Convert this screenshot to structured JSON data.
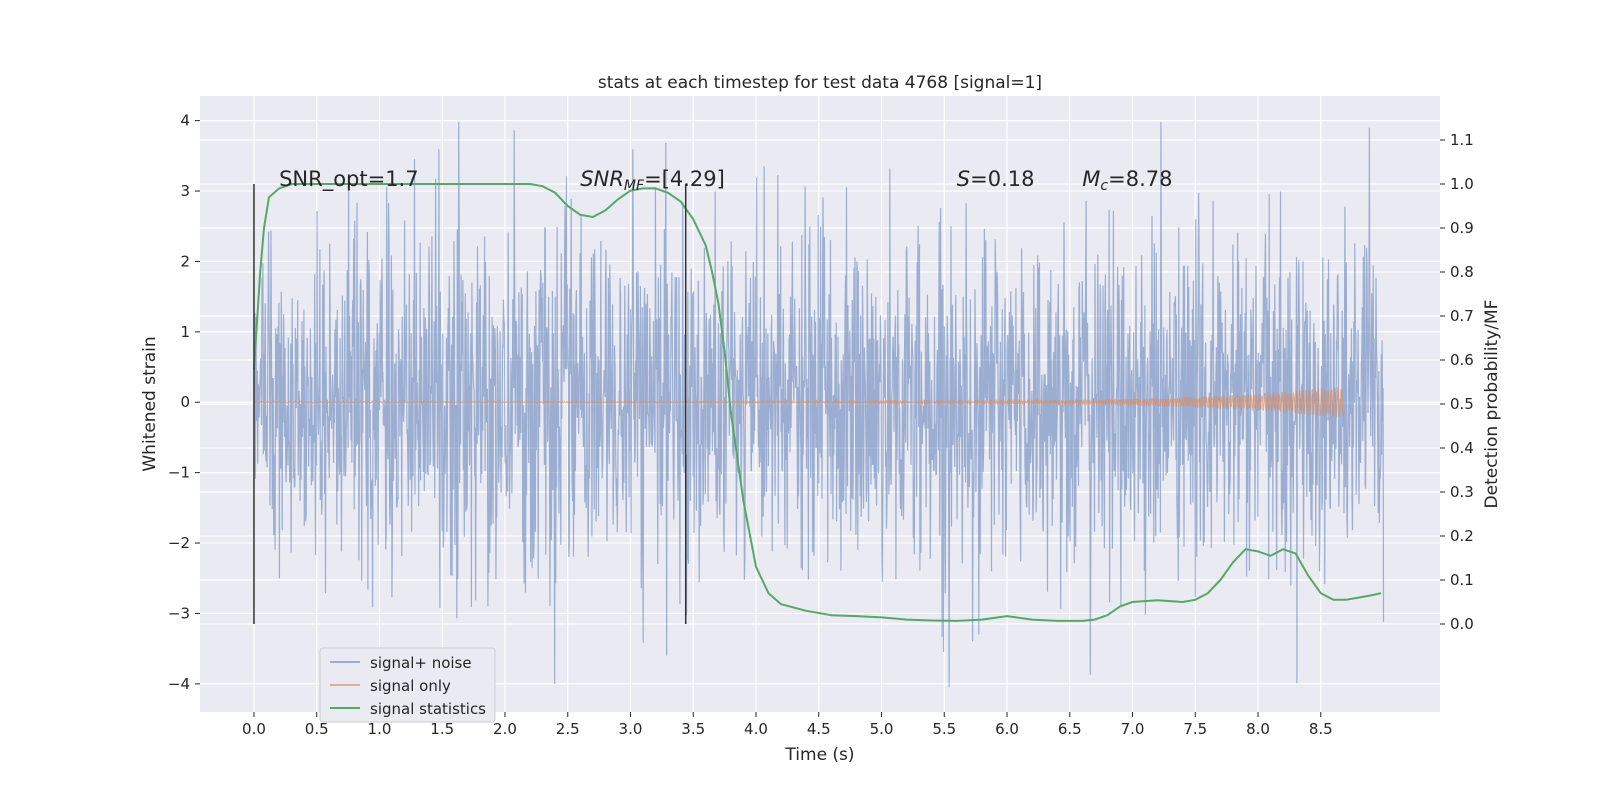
{
  "chart_data": {
    "type": "line",
    "title": "stats at each timestep for test data 4768 [signal=1]",
    "xlabel": "Time (s)",
    "ylabel": "Whitened strain",
    "y2label": "Detection probability/MF",
    "xlim": [
      -0.43,
      9.45
    ],
    "ylim": [
      -4.4,
      4.35
    ],
    "y2lim": [
      -0.2,
      1.2
    ],
    "x_ticks": [
      "0.0",
      "0.5",
      "1.0",
      "1.5",
      "2.0",
      "2.5",
      "3.0",
      "3.5",
      "4.0",
      "4.5",
      "5.0",
      "5.5",
      "6.0",
      "6.5",
      "7.0",
      "7.5",
      "8.0",
      "8.5"
    ],
    "x_tick_values": [
      0.0,
      0.5,
      1.0,
      1.5,
      2.0,
      2.5,
      3.0,
      3.5,
      4.0,
      4.5,
      5.0,
      5.5,
      6.0,
      6.5,
      7.0,
      7.5,
      8.0,
      8.5
    ],
    "y_ticks": [
      "−4",
      "−3",
      "−2",
      "−1",
      "0",
      "1",
      "2",
      "3",
      "4"
    ],
    "y_tick_values": [
      -4,
      -3,
      -2,
      -1,
      0,
      1,
      2,
      3,
      4
    ],
    "y2_ticks": [
      "0.0",
      "0.1",
      "0.2",
      "0.3",
      "0.4",
      "0.5",
      "0.6",
      "0.7",
      "0.8",
      "0.9",
      "1.0",
      "1.1"
    ],
    "y2_tick_values": [
      0.0,
      0.1,
      0.2,
      0.3,
      0.4,
      0.5,
      0.6,
      0.7,
      0.8,
      0.9,
      1.0,
      1.1
    ],
    "grid": true,
    "legend_position": "bottom-left",
    "series": [
      {
        "name": "signal+ noise",
        "axis": "left",
        "kind": "noise",
        "color": "#4c72b0",
        "x_range": [
          0.0,
          9.0
        ],
        "typical_amplitude": 1.2,
        "max": 3.98,
        "min": -4.05
      },
      {
        "name": "signal only",
        "axis": "left",
        "kind": "chirp",
        "color": "#dd8452",
        "x_range": [
          0.0,
          8.68
        ],
        "max_amplitude": 0.22
      },
      {
        "name": "signal statistics",
        "axis": "right",
        "color": "#55a868",
        "x": [
          0.0,
          0.05,
          0.08,
          0.12,
          0.2,
          0.3,
          0.5,
          1.0,
          1.5,
          2.0,
          2.2,
          2.3,
          2.4,
          2.5,
          2.6,
          2.7,
          2.8,
          2.9,
          3.0,
          3.1,
          3.2,
          3.3,
          3.4,
          3.5,
          3.6,
          3.65,
          3.7,
          3.75,
          3.8,
          3.9,
          4.0,
          4.1,
          4.2,
          4.4,
          4.6,
          4.8,
          5.0,
          5.2,
          5.4,
          5.6,
          5.8,
          6.0,
          6.2,
          6.4,
          6.5,
          6.6,
          6.7,
          6.8,
          6.9,
          7.0,
          7.1,
          7.2,
          7.3,
          7.4,
          7.5,
          7.6,
          7.7,
          7.8,
          7.9,
          8.0,
          8.1,
          8.2,
          8.3,
          8.4,
          8.5,
          8.6,
          8.7,
          8.8,
          8.9,
          8.98
        ],
        "y": [
          0.58,
          0.8,
          0.9,
          0.97,
          0.99,
          1.0,
          1.0,
          1.0,
          1.0,
          1.0,
          1.0,
          0.995,
          0.98,
          0.95,
          0.93,
          0.925,
          0.94,
          0.965,
          0.985,
          0.99,
          0.99,
          0.98,
          0.96,
          0.92,
          0.86,
          0.8,
          0.73,
          0.62,
          0.48,
          0.28,
          0.13,
          0.07,
          0.045,
          0.03,
          0.02,
          0.018,
          0.015,
          0.01,
          0.008,
          0.007,
          0.01,
          0.018,
          0.01,
          0.007,
          0.007,
          0.007,
          0.01,
          0.02,
          0.04,
          0.05,
          0.052,
          0.054,
          0.052,
          0.05,
          0.055,
          0.07,
          0.1,
          0.14,
          0.17,
          0.165,
          0.155,
          0.17,
          0.16,
          0.11,
          0.07,
          0.055,
          0.055,
          0.06,
          0.065,
          0.07
        ]
      }
    ],
    "vlines": [
      {
        "x": 0.0,
        "y_from": -3.15,
        "y_to": 3.1
      },
      {
        "x": 3.44,
        "y_from": -3.15,
        "y_to": 3.1
      }
    ],
    "annotations": [
      {
        "text": "SNR_opt=1.7",
        "x": 0.2,
        "y": 3.1
      },
      {
        "text": "SNRMF=[4.29]",
        "main": "SNR",
        "sub": "MF",
        "rest": "=[4.29]",
        "x": 2.6,
        "y": 3.1
      },
      {
        "text": "S=0.18",
        "main": "S",
        "sub": "",
        "rest": "=0.18",
        "x": 5.6,
        "y": 3.1
      },
      {
        "text": "Mc=8.78",
        "main": "M",
        "sub": "c",
        "rest": "=8.78",
        "x": 6.6,
        "y": 3.1
      }
    ]
  }
}
